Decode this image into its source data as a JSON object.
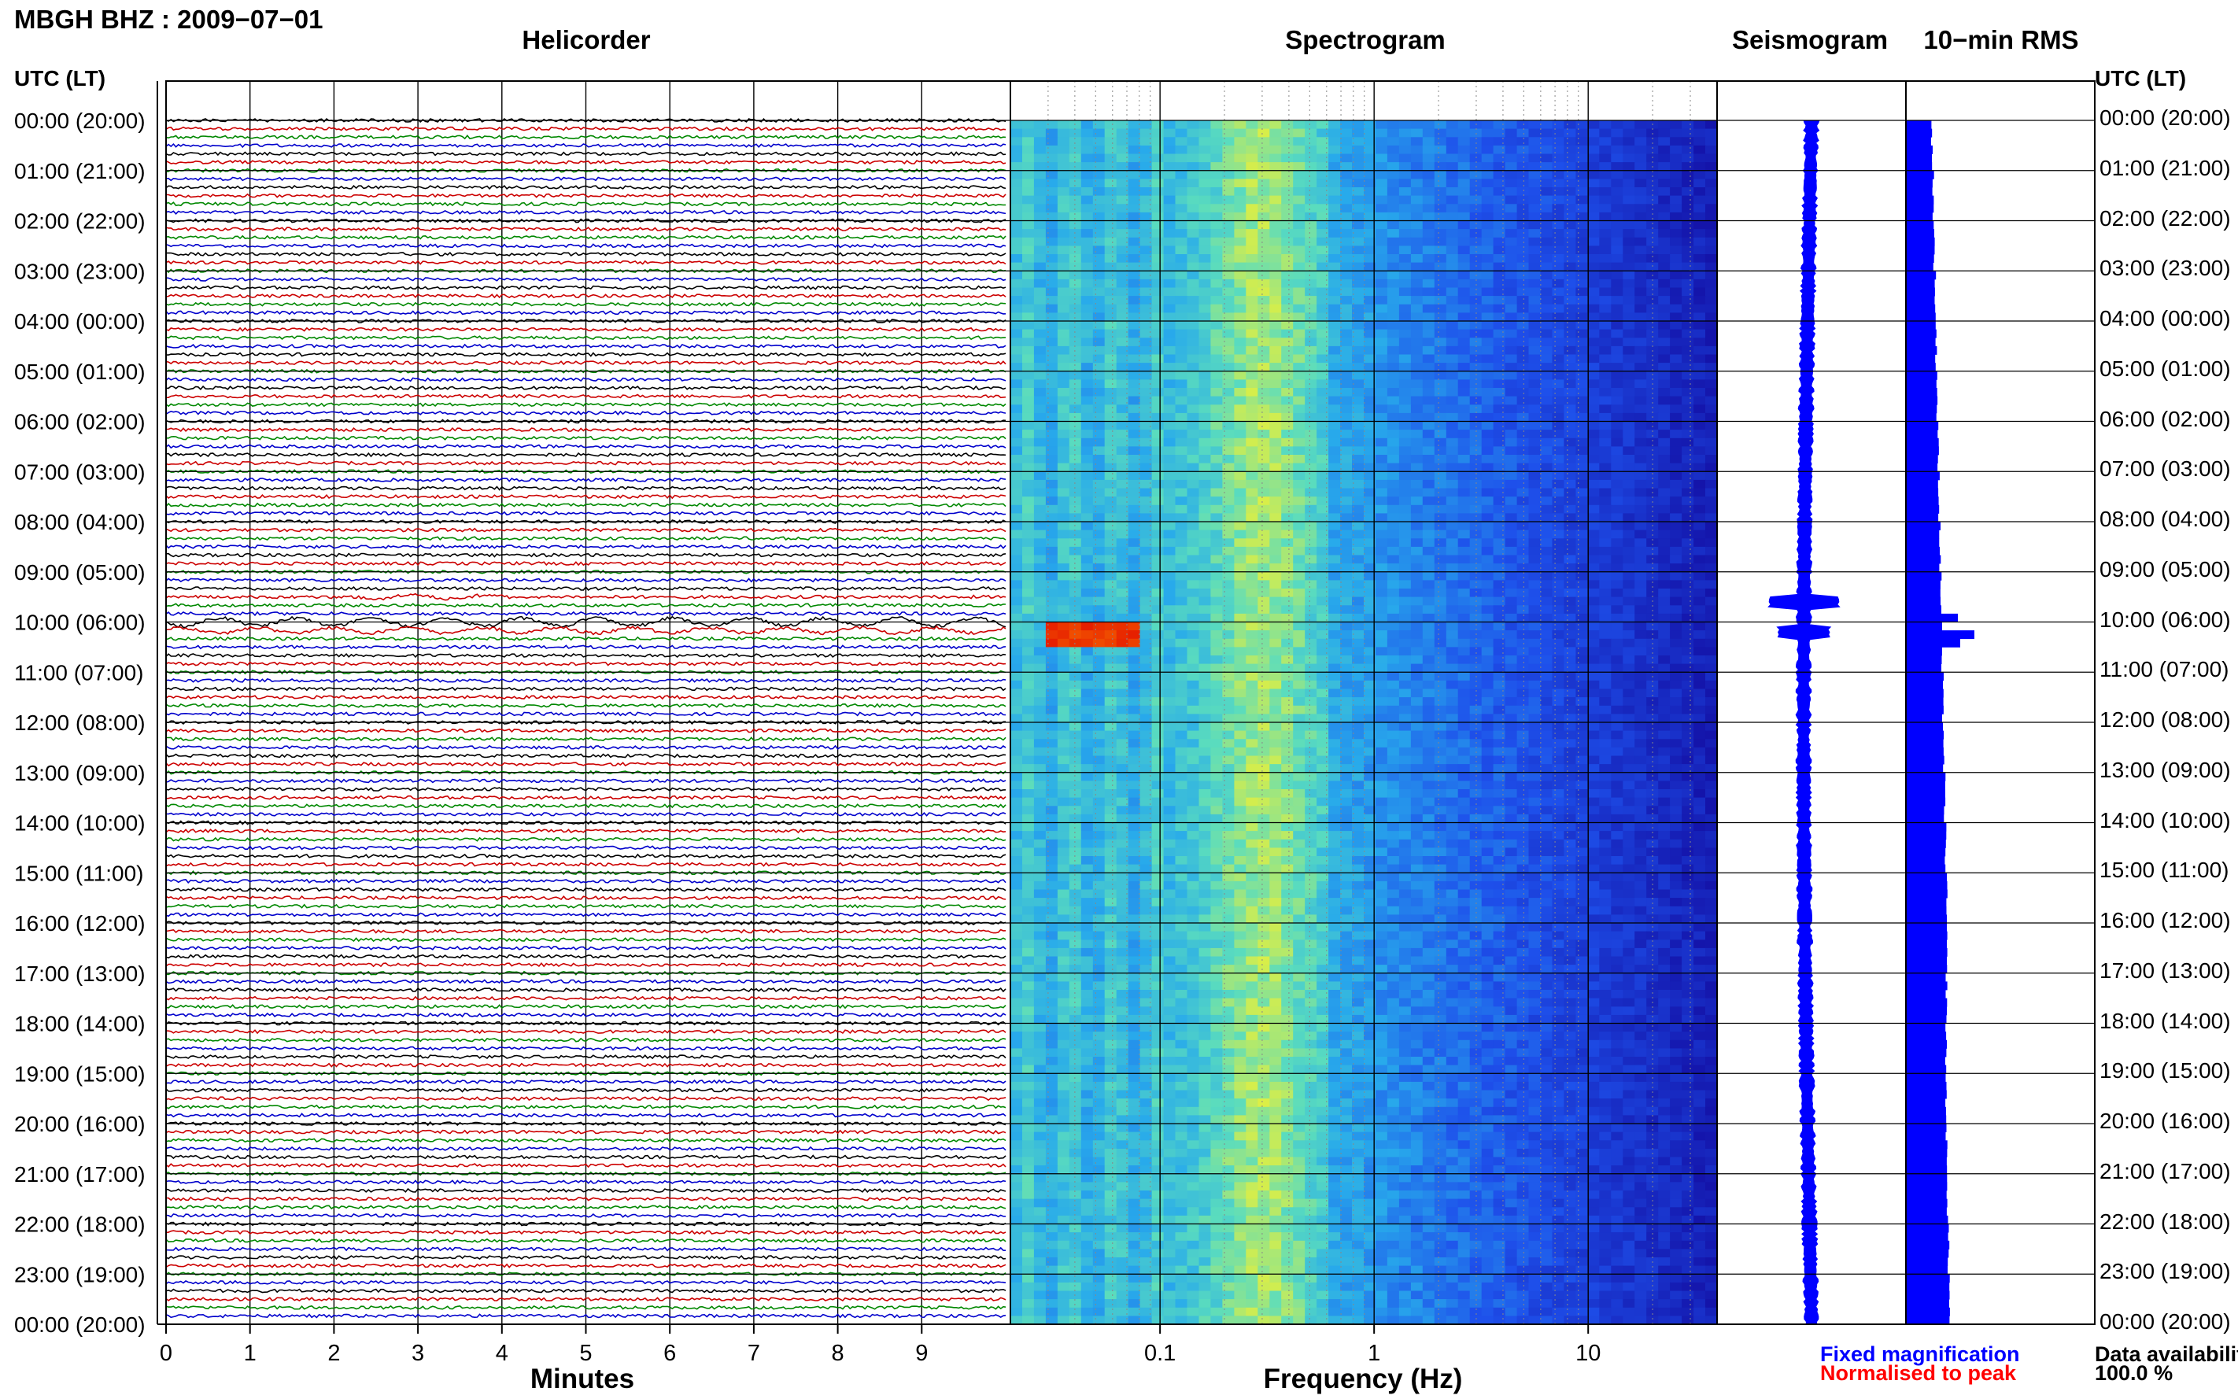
{
  "header": {
    "station_title": "MBGH BHZ : 2009−07−01",
    "utc_left_label": "UTC (LT)",
    "utc_right_label": "UTC (LT)"
  },
  "panels": {
    "helicorder": "Helicorder",
    "spectrogram": "Spectrogram",
    "seismogram": "Seismogram",
    "rms": "10−min RMS"
  },
  "axes": {
    "minutes_label": "Minutes",
    "frequency_label": "Frequency (Hz)"
  },
  "legend": {
    "fixed": "Fixed magnification",
    "normalised": "Normalised to peak"
  },
  "availability": {
    "label": "Data availability",
    "value": "100.0 %"
  },
  "colors": {
    "trace_cycle": [
      "#000000",
      "#cc0000",
      "#008800",
      "#0000cc"
    ],
    "seismogram": "#0000ff",
    "rms": "#0000ff",
    "spectrogram_low": "#1e28c8",
    "spectrogram_high": "#ff3c00"
  },
  "chart_data": [
    {
      "type": "line",
      "name": "helicorder",
      "title": "Helicorder",
      "xlabel": "Minutes",
      "xlim": [
        0,
        10
      ],
      "x_ticks": [
        0,
        1,
        2,
        3,
        4,
        5,
        6,
        7,
        8,
        9
      ],
      "y_tick_labels": [
        "00:00 (20:00)",
        "01:00 (21:00)",
        "02:00 (22:00)",
        "03:00 (23:00)",
        "04:00 (00:00)",
        "05:00 (01:00)",
        "06:00 (02:00)",
        "07:00 (03:00)",
        "08:00 (04:00)",
        "09:00 (05:00)",
        "10:00 (06:00)",
        "11:00 (07:00)",
        "12:00 (08:00)",
        "13:00 (09:00)",
        "14:00 (10:00)",
        "15:00 (11:00)",
        "16:00 (12:00)",
        "17:00 (13:00)",
        "18:00 (14:00)",
        "19:00 (15:00)",
        "20:00 (16:00)",
        "21:00 (17:00)",
        "22:00 (18:00)",
        "23:00 (19:00)",
        "00:00 (20:00)"
      ],
      "traces_per_hour": 6,
      "events": [
        {
          "hour": 9.5,
          "minute_start": 2.3,
          "minute_end": 4.2,
          "amplitude": 2.5
        },
        {
          "hour": 10.0,
          "minute_start": 0.0,
          "minute_end": 10.0,
          "amplitude": 5.0
        },
        {
          "hour": 10.1667,
          "minute_start": 0.0,
          "minute_end": 10.0,
          "amplitude": 3.5
        }
      ]
    },
    {
      "type": "heatmap",
      "name": "spectrogram",
      "title": "Spectrogram",
      "xlabel": "Frequency (Hz)",
      "x_scale": "log",
      "xlim": [
        0.02,
        40
      ],
      "x_tick_labels": [
        "0.1",
        "1",
        "10"
      ],
      "y_range_hours": [
        0,
        24
      ],
      "features": [
        {
          "label": "microseism band",
          "freq_hz": 0.3,
          "level": 0.6
        },
        {
          "label": "event energy",
          "freq_hz": 0.05,
          "hours": [
            10.0,
            10.5
          ],
          "level": 1.0
        }
      ]
    },
    {
      "type": "line",
      "name": "seismogram",
      "title": "Seismogram",
      "y_range_hours": [
        0,
        24
      ],
      "events": [
        {
          "hour": 9.6,
          "amplitude": 3
        },
        {
          "hour": 10.2,
          "amplitude": 2
        }
      ]
    },
    {
      "type": "bar",
      "name": "rms",
      "title": "10−min RMS",
      "orientation": "horizontal",
      "y_range_hours": [
        0,
        24
      ],
      "interval_minutes": 10,
      "baseline_trend": [
        0.55,
        0.58,
        0.6,
        0.62,
        0.64,
        0.66,
        0.68,
        0.7,
        0.72,
        0.74,
        0.76,
        0.78,
        0.8,
        0.82,
        0.84,
        0.86,
        0.86,
        0.86,
        0.85,
        0.85,
        0.86,
        0.88,
        0.9,
        0.92
      ],
      "peaks": [
        {
          "hour": 9.83,
          "value": 1.1
        },
        {
          "hour": 10.17,
          "value": 1.45
        },
        {
          "hour": 10.33,
          "value": 1.15
        }
      ]
    }
  ]
}
